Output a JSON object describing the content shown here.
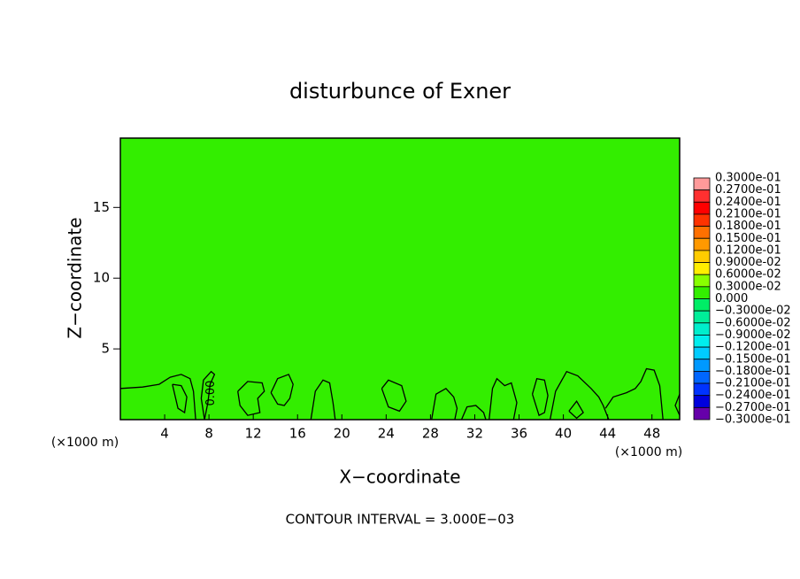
{
  "chart_data": {
    "type": "contour",
    "title": "disturbunce of Exner",
    "xlabel": "X−coordinate",
    "ylabel": "Z−coordinate",
    "x_unit_label": "(×1000 m)",
    "footnote": "CONTOUR INTERVAL = 3.000E−03",
    "xlim": [
      0,
      50.5
    ],
    "ylim": [
      0,
      19.9
    ],
    "xticks": [
      4,
      8,
      12,
      16,
      20,
      24,
      28,
      32,
      36,
      40,
      44,
      48
    ],
    "yticks": [
      5,
      10,
      15
    ],
    "fill_color": "#33ee00",
    "line_color": "#000000",
    "contour_label": "0.00",
    "contours": [
      {
        "x": [
          0,
          2,
          3.5,
          4.5,
          5.5,
          6.3,
          6.6,
          6.8
        ],
        "y": [
          2.2,
          2.3,
          2.5,
          3.0,
          3.2,
          2.9,
          2.0,
          0
        ]
      },
      {
        "x": [
          4.7,
          5.5,
          6,
          5.8,
          5.2,
          4.7
        ],
        "y": [
          2.5,
          2.4,
          1.6,
          0.5,
          0.8,
          2.5
        ]
      },
      {
        "x": [
          7.6,
          7.9,
          8.1,
          8.5,
          8.2,
          7.5,
          7.3,
          7.6
        ],
        "y": [
          0,
          1.2,
          2.5,
          3.2,
          3.4,
          2.8,
          1.5,
          0
        ]
      },
      {
        "x": [
          10.6,
          11.5,
          12.8,
          13,
          12.4,
          12.6,
          11.5,
          10.8,
          10.6
        ],
        "y": [
          2.0,
          2.7,
          2.6,
          2.0,
          1.5,
          0.5,
          0.3,
          1.0,
          2.0
        ]
      },
      {
        "x": [
          13.6,
          14.2,
          15.2,
          15.6,
          15.3,
          14.8,
          14.2,
          13.6
        ],
        "y": [
          1.9,
          2.9,
          3.2,
          2.5,
          1.5,
          1.0,
          1.1,
          1.9
        ]
      },
      {
        "x": [
          17.2,
          17.6,
          18.3,
          18.9,
          19.2,
          19.4
        ],
        "y": [
          0,
          2.0,
          2.8,
          2.6,
          1.2,
          0
        ]
      },
      {
        "x": [
          23.6,
          24.2,
          25.4,
          25.8,
          25.2,
          24.2,
          23.6
        ],
        "y": [
          2.2,
          2.8,
          2.4,
          1.3,
          0.6,
          0.9,
          2.2
        ]
      },
      {
        "x": [
          28.1,
          28.5,
          29.4,
          30.1,
          30.4,
          30.2
        ],
        "y": [
          0,
          1.8,
          2.2,
          1.6,
          0.8,
          0
        ]
      },
      {
        "x": [
          30.8,
          31.3,
          32.1,
          32.8,
          33.0
        ],
        "y": [
          0,
          0.9,
          1.0,
          0.5,
          0
        ]
      },
      {
        "x": [
          33.3,
          33.6,
          34.0,
          34.7,
          35.3,
          35.8,
          35.5
        ],
        "y": [
          0,
          2.2,
          2.9,
          2.4,
          2.6,
          1.2,
          0
        ]
      },
      {
        "x": [
          37.2,
          37.6,
          38.3,
          38.6,
          38.3,
          37.8,
          37.2
        ],
        "y": [
          1.8,
          2.9,
          2.8,
          1.7,
          0.5,
          0.3,
          1.8
        ]
      },
      {
        "x": [
          38.8,
          39.3,
          40.3,
          41.3,
          42.5,
          43.2,
          43.6,
          44.1
        ],
        "y": [
          0,
          2.0,
          3.4,
          3.1,
          2.2,
          1.6,
          1.0,
          0
        ]
      },
      {
        "x": [
          40.5,
          41.2,
          41.8,
          41.2,
          40.5
        ],
        "y": [
          0.6,
          1.3,
          0.5,
          0.1,
          0.6
        ]
      },
      {
        "x": [
          43.8,
          44.5,
          45.7,
          46.5,
          47,
          47.5,
          48.2,
          48.7,
          49
        ],
        "y": [
          0.8,
          1.6,
          1.9,
          2.2,
          2.7,
          3.6,
          3.5,
          2.4,
          0
        ]
      },
      {
        "x": [
          50.5,
          50.1,
          50.5
        ],
        "y": [
          1.8,
          1.0,
          0.3
        ]
      }
    ],
    "levels": [
      {
        "value": 0.03,
        "label": "0.3000e-01"
      },
      {
        "value": 0.027,
        "label": "0.2700e-01"
      },
      {
        "value": 0.024,
        "label": "0.2400e-01"
      },
      {
        "value": 0.021,
        "label": "0.2100e-01"
      },
      {
        "value": 0.018,
        "label": "0.1800e-01"
      },
      {
        "value": 0.015,
        "label": "0.1500e-01"
      },
      {
        "value": 0.012,
        "label": "0.1200e-01"
      },
      {
        "value": 0.009,
        "label": "0.9000e-02"
      },
      {
        "value": 0.006,
        "label": "0.6000e-02"
      },
      {
        "value": 0.003,
        "label": "0.3000e-02"
      },
      {
        "value": 0,
        "label": "0.000"
      },
      {
        "value": -0.003,
        "label": "−0.3000e-02"
      },
      {
        "value": -0.006,
        "label": "−0.6000e-02"
      },
      {
        "value": -0.009,
        "label": "−0.9000e-02"
      },
      {
        "value": -0.012,
        "label": "−0.1200e-01"
      },
      {
        "value": -0.015,
        "label": "−0.1500e-01"
      },
      {
        "value": -0.018,
        "label": "−0.1800e-01"
      },
      {
        "value": -0.021,
        "label": "−0.2100e-01"
      },
      {
        "value": -0.024,
        "label": "−0.2400e-01"
      },
      {
        "value": -0.027,
        "label": "−0.2700e-01"
      },
      {
        "value": -0.03,
        "label": "−0.3000e-01"
      }
    ],
    "level_colors": [
      "#ff9a9a",
      "#ff3030",
      "#ff0000",
      "#ff3300",
      "#ff7000",
      "#ff9900",
      "#ffcc00",
      "#ffee00",
      "#88ff00",
      "#33ee00",
      "#00ee66",
      "#00ee99",
      "#00eecc",
      "#00eeee",
      "#00ccff",
      "#0099ff",
      "#0066ff",
      "#0033ff",
      "#0000dd",
      "#6600aa"
    ]
  }
}
